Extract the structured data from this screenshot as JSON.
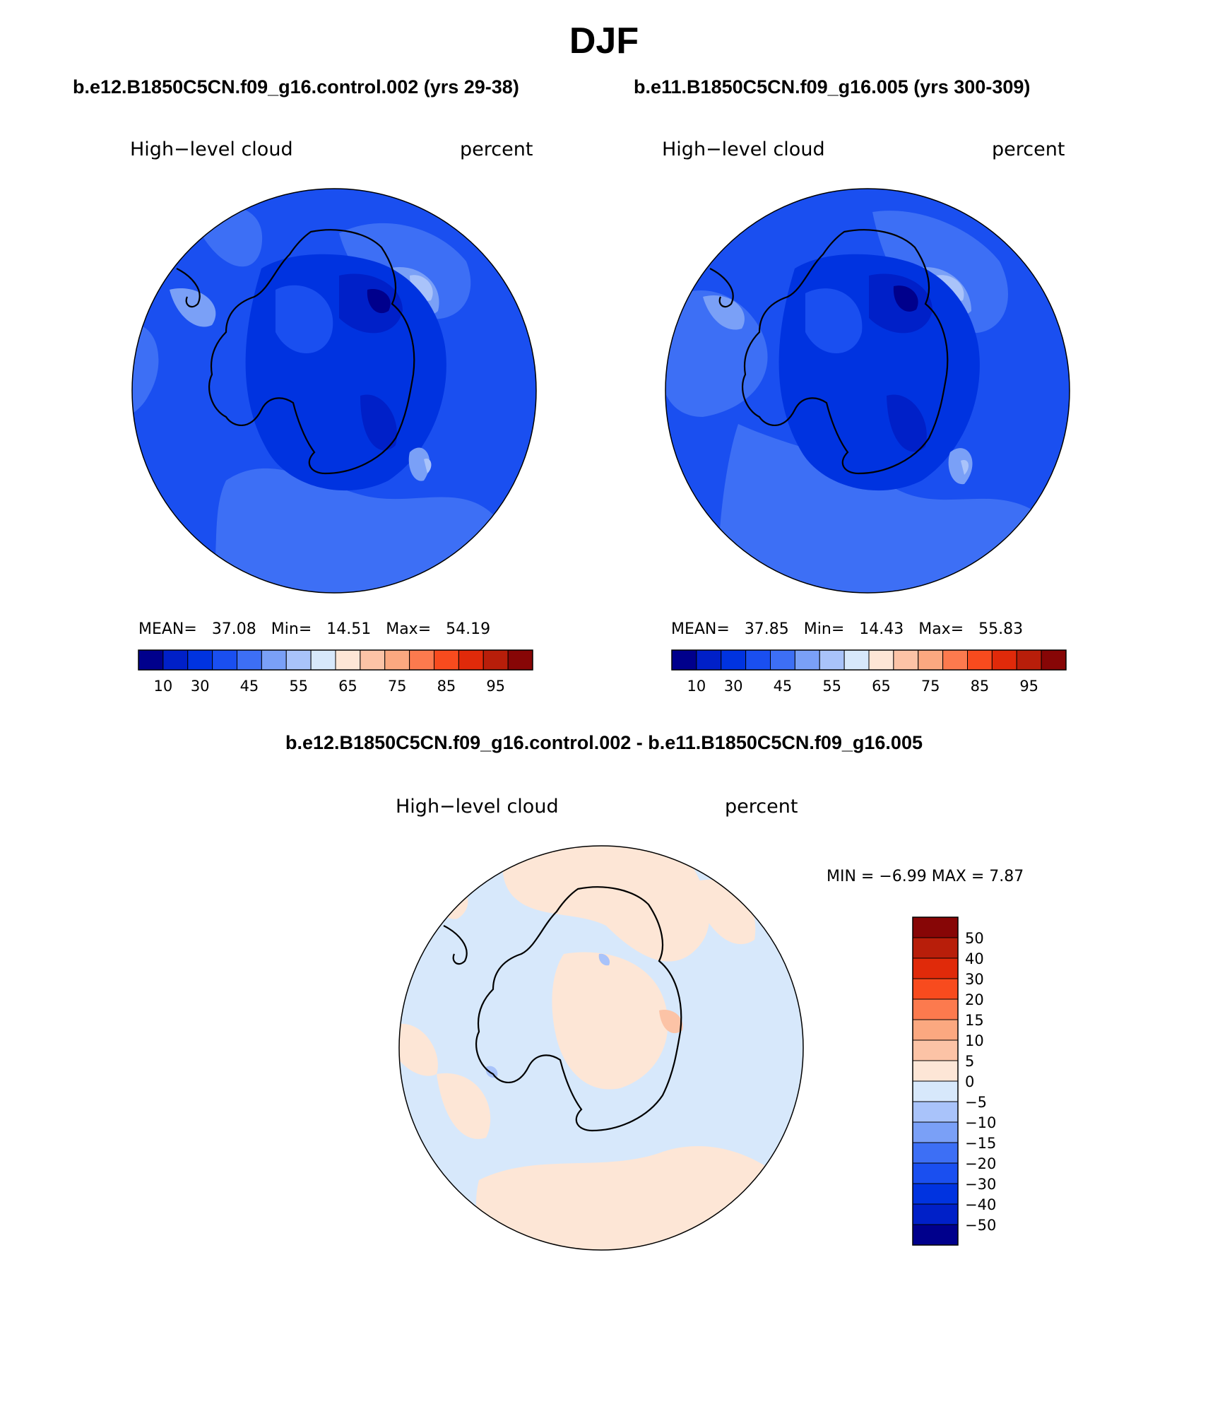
{
  "title": "DJF",
  "panel_left": {
    "case": "b.e12.B1850C5CN.f09_g16.control.002 (yrs 29-38)",
    "variable": "High−level cloud",
    "units": "percent",
    "stats": {
      "mean_label": "MEAN=",
      "mean": "37.08",
      "min_label": "Min=",
      "min": "14.51",
      "max_label": "Max=",
      "max": "54.19"
    }
  },
  "panel_right": {
    "case": "b.e11.B1850C5CN.f09_g16.005 (yrs 300-309)",
    "variable": "High−level cloud",
    "units": "percent",
    "stats": {
      "mean_label": "MEAN=",
      "mean": "37.85",
      "min_label": "Min=",
      "min": "14.43",
      "max_label": "Max=",
      "max": "55.83"
    }
  },
  "panel_diff": {
    "case": "b.e12.B1850C5CN.f09_g16.control.002 - b.e11.B1850C5CN.f09_g16.005",
    "variable": "High−level cloud",
    "units": "percent",
    "stats_text": "MIN =   −6.99  MAX =     7.87"
  },
  "colorbar_abs": {
    "colors": [
      "#00008c",
      "#0020c8",
      "#0033e0",
      "#1a4ff0",
      "#3d6ff5",
      "#7aa0f7",
      "#a9c3fa",
      "#d7e8fb",
      "#fde6d6",
      "#fcc3a6",
      "#fba880",
      "#fc7a4e",
      "#f84b1e",
      "#e02a0a",
      "#b81e0a",
      "#870606"
    ],
    "tick_labels": [
      "10",
      "30",
      "45",
      "55",
      "65",
      "75",
      "85",
      "95"
    ],
    "tick_positions": [
      1,
      3,
      5,
      7,
      9,
      11,
      13,
      15
    ]
  },
  "colorbar_diff": {
    "colors": [
      "#870606",
      "#b81e0a",
      "#e02a0a",
      "#f84b1e",
      "#fc7a4e",
      "#fba880",
      "#fcc3a6",
      "#fde6d6",
      "#d7e8fb",
      "#a9c3fa",
      "#7aa0f7",
      "#3d6ff5",
      "#1a4ff0",
      "#0033e0",
      "#0020c8",
      "#00008c"
    ],
    "tick_labels": [
      "50",
      "40",
      "30",
      "20",
      "15",
      "10",
      "5",
      "0",
      "−5",
      "−10",
      "−15",
      "−20",
      "−30",
      "−40",
      "−50"
    ]
  }
}
